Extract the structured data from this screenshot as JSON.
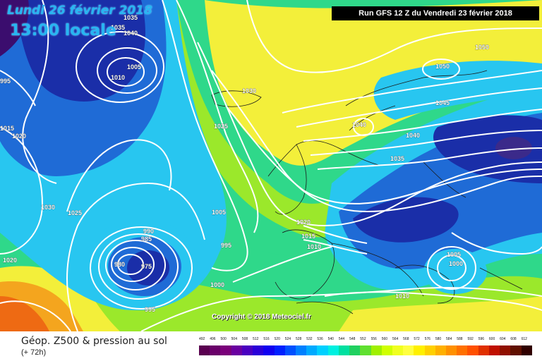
{
  "header": {
    "date_line": "Lundi 26 février 2018",
    "time_line": "13:00 locale",
    "run_info": "Run GFS 12 Z du Vendredi 23 février 2018"
  },
  "copyright": "Copyright © 2018 Meteociel.fr",
  "footer": {
    "title": "Géop. Z500 & pression au sol",
    "subtitle": "(+ 72h)"
  },
  "scale": {
    "labels": [
      "492",
      "496",
      "500",
      "504",
      "508",
      "512",
      "516",
      "520",
      "524",
      "528",
      "532",
      "536",
      "540",
      "544",
      "548",
      "552",
      "556",
      "560",
      "564",
      "568",
      "572",
      "576",
      "580",
      "584",
      "588",
      "592",
      "596",
      "600",
      "604",
      "608",
      "612"
    ],
    "colors": [
      "#5a0050",
      "#6a006a",
      "#7a007a",
      "#6a00a0",
      "#4a00c0",
      "#2a00d8",
      "#1000f0",
      "#0020ff",
      "#0050ff",
      "#0080ff",
      "#00aaff",
      "#00d0ff",
      "#00f0e0",
      "#00e0a0",
      "#20d060",
      "#60e030",
      "#a0f000",
      "#d0ff00",
      "#f0ff20",
      "#ffff40",
      "#fff000",
      "#ffd000",
      "#ffb000",
      "#ff9000",
      "#ff7000",
      "#ff5000",
      "#e03000",
      "#c01000",
      "#901000",
      "#601000",
      "#300000"
    ]
  },
  "isobar_labels": [
    "1035",
    "1040",
    "1035",
    "1005",
    "1010",
    "1030",
    "1025",
    "1020",
    "1015",
    "1030",
    "1025",
    "990",
    "985",
    "980",
    "975",
    "995",
    "1000",
    "995",
    "1020",
    "1005",
    "995",
    "1000",
    "1020",
    "1015",
    "1010",
    "1040",
    "1035",
    "1040",
    "1045",
    "1050",
    "1050",
    "1005",
    "1000",
    "1010",
    "1020"
  ],
  "map_colors": {
    "deep_blue": "#1a2ea8",
    "blue": "#1f6bd6",
    "cyan": "#28c6f0",
    "green": "#2fd88a",
    "lime": "#9be82b",
    "yellow": "#f3ef3a",
    "orange": "#f4a51e",
    "red_orange": "#ee6a13",
    "purple": "#3b0d6e",
    "isobar": "#ffffff",
    "coast": "#1a1a1a"
  }
}
